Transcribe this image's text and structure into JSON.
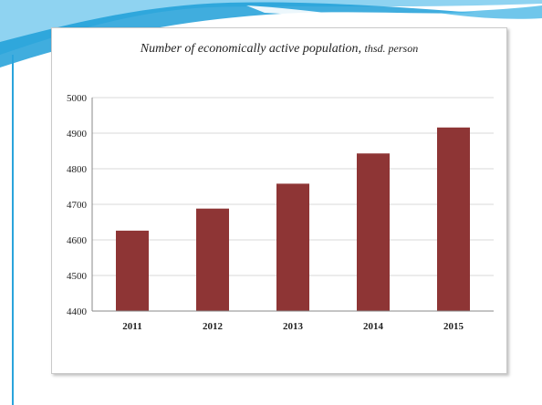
{
  "colors": {
    "bar": "#8e3535",
    "grid": "#d9d9d9",
    "axis": "#888888",
    "banner_dark": "#1f9fd8",
    "banner_light": "#8fd3f1"
  },
  "chart_data": {
    "type": "bar",
    "title": "Number of economically active population,",
    "title_suffix": "thsd. person",
    "categories": [
      "2011",
      "2012",
      "2013",
      "2014",
      "2015"
    ],
    "values": [
      4626,
      4688,
      4758,
      4843,
      4916
    ],
    "xlabel": "",
    "ylabel": "",
    "ylim": [
      4400,
      5000
    ],
    "yticks": [
      "4400",
      "4500",
      "4600",
      "4700",
      "4800",
      "4900",
      "5000"
    ],
    "grid": true,
    "legend": "none"
  }
}
